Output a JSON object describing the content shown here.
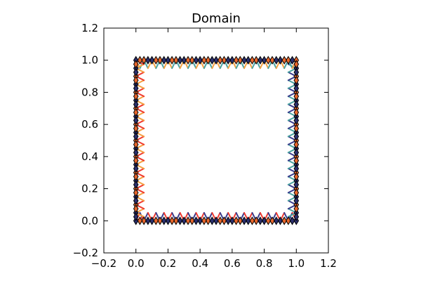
{
  "chart_data": {
    "type": "line",
    "title": "Domain",
    "xlabel": "",
    "ylabel": "",
    "xlim": [
      -0.2,
      1.2
    ],
    "ylim": [
      -0.2,
      1.2
    ],
    "x_ticks": [
      -0.2,
      0.0,
      0.2,
      0.4,
      0.6,
      0.8,
      1.0,
      1.2
    ],
    "y_ticks": [
      -0.2,
      0.0,
      0.2,
      0.4,
      0.6,
      0.8,
      1.0,
      1.2
    ],
    "x_tick_labels": [
      "−0.2",
      "0.0",
      "0.2",
      "0.4",
      "0.6",
      "0.8",
      "1.0",
      "1.2"
    ],
    "y_tick_labels": [
      "−0.2",
      "0.0",
      "0.2",
      "0.4",
      "0.6",
      "0.8",
      "1.0",
      "1.2"
    ],
    "grid": false,
    "marker": "diamond",
    "zigzag_amplitude": 0.05,
    "boundary_points_per_side": 21,
    "series": [
      {
        "side": "bottom",
        "from": [
          0.0,
          0.0
        ],
        "to": [
          1.0,
          0.0
        ],
        "inward": [
          0,
          1
        ],
        "colors": [
          "#f03a2f",
          "#3a3c8c"
        ]
      },
      {
        "side": "right",
        "from": [
          1.0,
          0.0
        ],
        "to": [
          1.0,
          1.0
        ],
        "inward": [
          -1,
          0
        ],
        "colors": [
          "#3a3c8c",
          "#4aa3a0"
        ]
      },
      {
        "side": "top",
        "from": [
          0.0,
          1.0
        ],
        "to": [
          1.0,
          1.0
        ],
        "inward": [
          0,
          -1
        ],
        "colors": [
          "#f5a142",
          "#4aa3a0"
        ]
      },
      {
        "side": "left",
        "from": [
          0.0,
          0.0
        ],
        "to": [
          0.0,
          1.0
        ],
        "inward": [
          1,
          0
        ],
        "colors": [
          "#f03a2f",
          "#f5a142"
        ]
      }
    ],
    "colors": {
      "axes": "#000000",
      "marker_edge": "#000000"
    }
  }
}
